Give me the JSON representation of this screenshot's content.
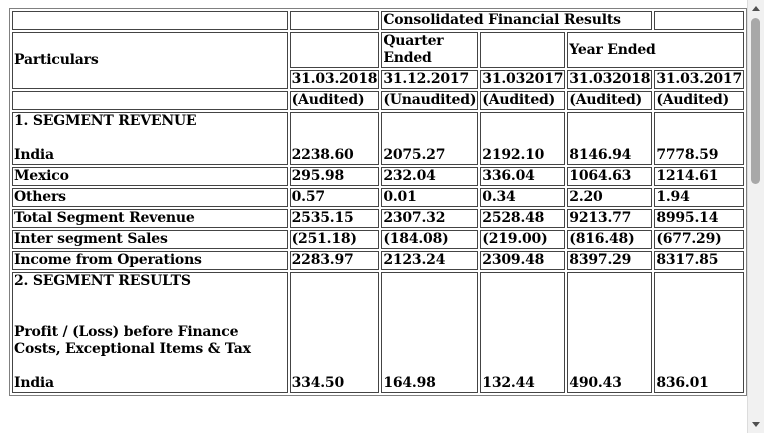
{
  "header": {
    "title": "Consolidated Financial Results",
    "particulars": "Particulars",
    "quarter_ended": "Quarter Ended",
    "year_ended": "Year Ended",
    "dates": [
      "31.03.2018",
      "31.12.2017",
      "31.032017",
      "31.032018",
      "31.03.2017"
    ],
    "statuses": [
      "(Audited)",
      "(Unaudited)",
      "(Audited)",
      "(Audited)",
      "(Audited)"
    ]
  },
  "sections": {
    "revenue_title": "1. SEGMENT REVENUE",
    "results_title": "2. SEGMENT RESULTS",
    "results_subtitle": "Profit / (Loss) before Finance Costs, Exceptional Items & Tax"
  },
  "rows": [
    {
      "label": "India",
      "values": [
        "2238.60",
        "2075.27",
        "2192.10",
        "8146.94",
        "7778.59"
      ]
    },
    {
      "label": "Mexico",
      "values": [
        "295.98",
        "232.04",
        "336.04",
        "1064.63",
        "1214.61"
      ]
    },
    {
      "label": "Others",
      "values": [
        "0.57",
        "0.01",
        "0.34",
        "2.20",
        "1.94"
      ]
    },
    {
      "label": "Total Segment Revenue",
      "values": [
        "2535.15",
        "2307.32",
        "2528.48",
        "9213.77",
        "8995.14"
      ]
    },
    {
      "label": "Inter segment Sales",
      "values": [
        "(251.18)",
        "(184.08)",
        "(219.00)",
        "(816.48)",
        "(677.29)"
      ]
    },
    {
      "label": "Income from Operations",
      "values": [
        "2283.97",
        "2123.24",
        "2309.48",
        "8397.29",
        "8317.85"
      ]
    },
    {
      "label": "India",
      "values": [
        "334.50",
        "164.98",
        "132.44",
        "490.43",
        "836.01"
      ]
    }
  ]
}
